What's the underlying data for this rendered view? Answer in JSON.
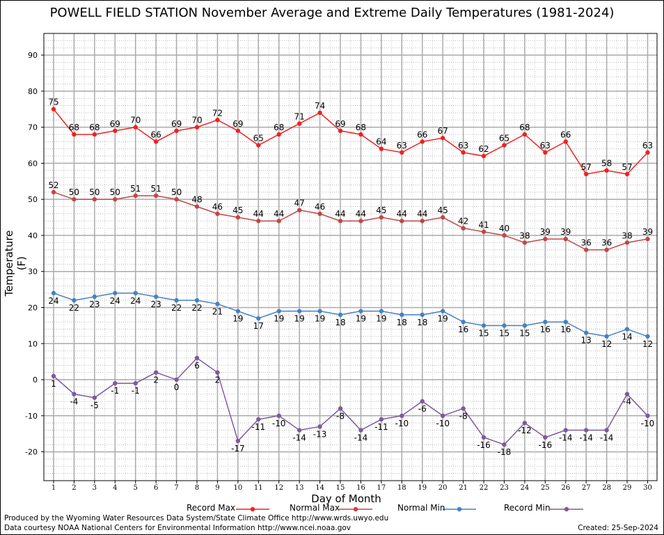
{
  "title": "POWELL FIELD STATION November Average and Extreme Daily Temperatures (1981-2024)",
  "ylabel": "Temperature (F)",
  "xlabel": "Day of Month",
  "credits": {
    "line1": "Produced by the Wyoming Water Resources Data System/State Climate Office http://www.wrds.uwyo.edu",
    "line2": "Data courtesy NOAA National Centers for Environmental Information http://www.ncei.noaa.gov",
    "created": "Created:  25-Sep-2024"
  },
  "chart_data": {
    "type": "line",
    "title": "POWELL FIELD STATION November Average and Extreme Daily Temperatures (1981-2024)",
    "xlabel": "Day of Month",
    "ylabel": "Temperature (F)",
    "x": [
      1,
      2,
      3,
      4,
      5,
      6,
      7,
      8,
      9,
      10,
      11,
      12,
      13,
      14,
      15,
      16,
      17,
      18,
      19,
      20,
      21,
      22,
      23,
      24,
      25,
      26,
      27,
      28,
      29,
      30
    ],
    "xlim": [
      1,
      30
    ],
    "ylim": [
      -28,
      96
    ],
    "yticks": [
      -20,
      -10,
      0,
      10,
      20,
      30,
      40,
      50,
      60,
      70,
      80,
      90
    ],
    "grid": true,
    "legend_position": "bottom",
    "series": [
      {
        "name": "Record Max",
        "color": "#ee2222",
        "values": [
          75,
          68,
          68,
          69,
          70,
          66,
          69,
          70,
          72,
          69,
          65,
          68,
          71,
          74,
          69,
          68,
          64,
          63,
          66,
          67,
          63,
          62,
          65,
          68,
          63,
          66,
          57,
          58,
          57,
          63
        ]
      },
      {
        "name": "Normal Max",
        "color": "#c04848",
        "values": [
          52,
          50,
          50,
          50,
          51,
          51,
          50,
          48,
          46,
          45,
          44,
          44,
          47,
          46,
          44,
          44,
          45,
          44,
          44,
          45,
          42,
          41,
          40,
          38,
          39,
          39,
          36,
          36,
          38,
          39
        ]
      },
      {
        "name": "Normal Min",
        "color": "#4682c0",
        "values": [
          24,
          22,
          23,
          24,
          24,
          23,
          22,
          22,
          21,
          19,
          17,
          19,
          19,
          19,
          18,
          19,
          19,
          18,
          18,
          19,
          16,
          15,
          15,
          15,
          16,
          16,
          13,
          12,
          14,
          12
        ]
      },
      {
        "name": "Record Min",
        "color": "#7e5a9e",
        "values": [
          1,
          -4,
          -5,
          -1,
          -1,
          2,
          0,
          6,
          2,
          -17,
          -11,
          -10,
          -14,
          -13,
          -8,
          -14,
          -11,
          -10,
          -6,
          -10,
          -8,
          -16,
          -18,
          -12,
          -16,
          -14,
          -14,
          -14,
          -4,
          -10
        ]
      }
    ]
  }
}
